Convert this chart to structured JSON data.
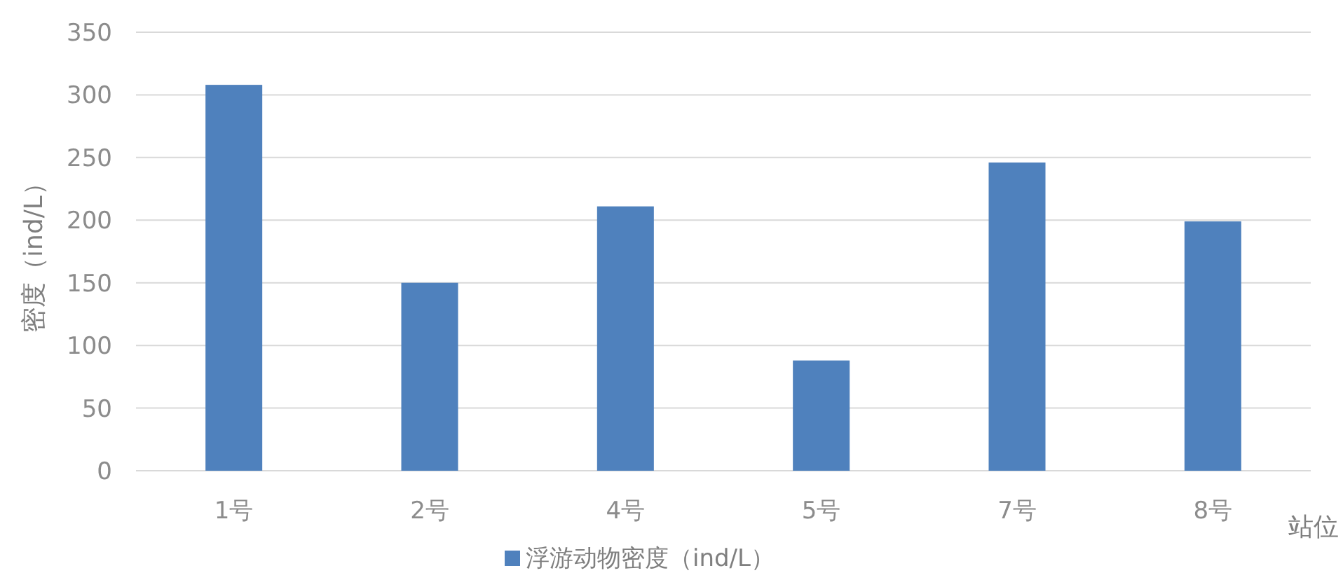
{
  "chart_data": {
    "type": "bar",
    "xlabel": "站位",
    "ylabel": "密度（ind/L）",
    "categories": [
      "1号",
      "2号",
      "4号",
      "5号",
      "7号",
      "8号"
    ],
    "series": [
      {
        "name": "浮游动物密度（ind/L）",
        "color": "#4f81bd",
        "values": [
          308,
          150,
          211,
          88,
          246,
          199
        ]
      }
    ],
    "ylim": [
      0,
      350
    ],
    "yticks": [
      0,
      50,
      100,
      150,
      200,
      250,
      300,
      350
    ],
    "grid": "y",
    "legend": "bottom"
  }
}
